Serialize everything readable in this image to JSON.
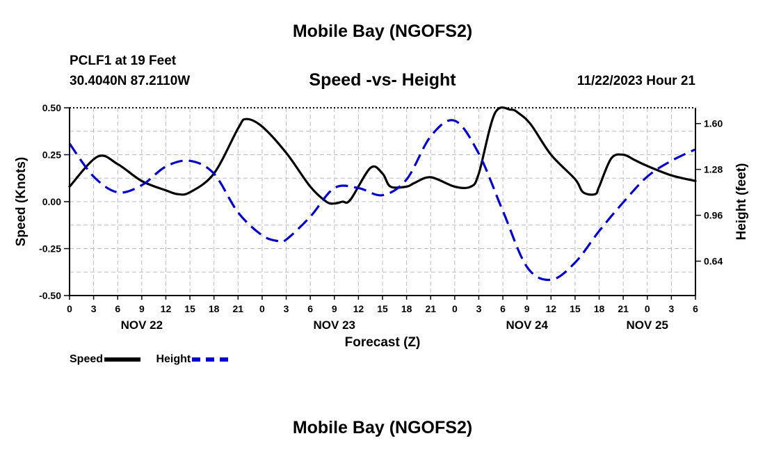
{
  "header": {
    "title": "Mobile Bay (NGOFS2)",
    "station": "PCLF1 at 19 Feet",
    "coords": "30.4040N  87.2110W",
    "subtitle": "Speed -vs- Height",
    "datetime": "11/22/2023 Hour 21"
  },
  "footer": {
    "title": "Mobile Bay (NGOFS2)"
  },
  "chart_data": {
    "type": "line",
    "title": "Speed -vs- Height",
    "xlabel": "Forecast (Z)",
    "ylabel": "Speed (Knots)",
    "y2label": "Height (feet)",
    "x_range_hours": [
      0,
      78
    ],
    "ylim": [
      -0.5,
      0.5
    ],
    "y_ticks": [
      "0.50",
      "0.25",
      "0.00",
      "-0.25",
      "-0.50"
    ],
    "y_tick_values": [
      0.5,
      0.25,
      0.0,
      -0.25,
      -0.5
    ],
    "y2lim": [
      0.4,
      1.71
    ],
    "y2_ticks": [
      "1.60",
      "1.28",
      "0.96",
      "0.64"
    ],
    "y2_tick_values": [
      1.6,
      1.28,
      0.96,
      0.64
    ],
    "x_tick_labels": [
      "0",
      "3",
      "6",
      "9",
      "12",
      "15",
      "18",
      "21",
      "0",
      "3",
      "6",
      "9",
      "12",
      "15",
      "18",
      "21",
      "0",
      "3",
      "6",
      "9",
      "12",
      "15",
      "18",
      "21",
      "0",
      "3",
      "6"
    ],
    "date_labels": [
      {
        "label": "NOV 22",
        "hour": 9
      },
      {
        "label": "NOV 23",
        "hour": 33
      },
      {
        "label": "NOV 24",
        "hour": 57
      },
      {
        "label": "NOV 25",
        "hour": 72
      }
    ],
    "grid": true,
    "series": [
      {
        "name": "Speed",
        "axis": "left",
        "color": "#000000",
        "style": "solid",
        "x": [
          0,
          3.5,
          6,
          9,
          12,
          13.5,
          15,
          18,
          21,
          22,
          24,
          27,
          30,
          32,
          33,
          34,
          35,
          37.5,
          39,
          40,
          42,
          43,
          45,
          48,
          50,
          51,
          53,
          55,
          56,
          57.5,
          60,
          63,
          64,
          65.5,
          66,
          67.5,
          69,
          70.5,
          72,
          75,
          78
        ],
        "values": [
          0.08,
          0.24,
          0.2,
          0.11,
          0.06,
          0.04,
          0.05,
          0.15,
          0.39,
          0.44,
          0.4,
          0.26,
          0.08,
          0.0,
          -0.01,
          0.0,
          0.01,
          0.18,
          0.15,
          0.08,
          0.08,
          0.1,
          0.13,
          0.08,
          0.08,
          0.15,
          0.47,
          0.49,
          0.47,
          0.41,
          0.25,
          0.12,
          0.05,
          0.04,
          0.08,
          0.23,
          0.25,
          0.22,
          0.19,
          0.14,
          0.11
        ]
      },
      {
        "name": "Height",
        "axis": "right",
        "color": "#0000cc",
        "style": "dashed",
        "x": [
          0,
          3,
          6,
          9,
          12,
          15,
          18,
          21,
          24,
          26,
          27,
          30,
          33,
          36,
          39,
          42,
          45,
          48,
          51,
          54,
          57,
          60,
          63,
          66,
          69,
          72,
          75,
          78
        ],
        "values": [
          1.46,
          1.23,
          1.12,
          1.17,
          1.3,
          1.34,
          1.25,
          0.98,
          0.82,
          0.78,
          0.79,
          0.95,
          1.15,
          1.15,
          1.1,
          1.21,
          1.51,
          1.62,
          1.39,
          0.99,
          0.6,
          0.51,
          0.63,
          0.85,
          1.05,
          1.23,
          1.34,
          1.42
        ]
      }
    ]
  }
}
